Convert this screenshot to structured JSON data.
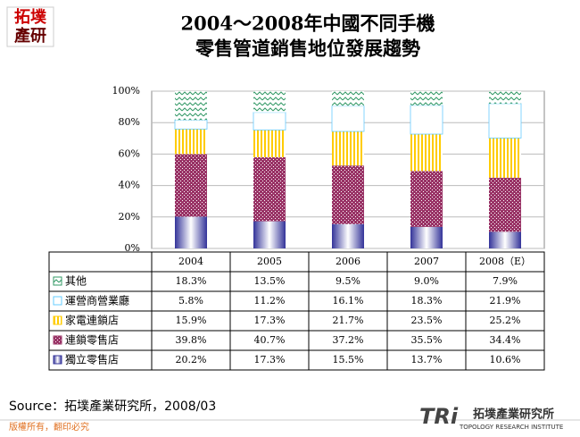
{
  "logo": [
    "拓墣",
    "產研"
  ],
  "chart_data": {
    "type": "stacked-bar",
    "title": [
      "2004～2008年中國不同手機",
      "零售管道銷售地位發展趨勢"
    ],
    "categories": [
      "2004",
      "2005",
      "2006",
      "2007",
      "2008（E）"
    ],
    "series": [
      {
        "name": "其他",
        "color": "#339966",
        "values": [
          18.3,
          13.5,
          9.5,
          9.0,
          7.9
        ],
        "value_labels": [
          "18.3%",
          "13.5%",
          "9.5%",
          "9.0%",
          "7.9%"
        ]
      },
      {
        "name": "運營商營業廳",
        "color": "#66ccff",
        "values": [
          5.8,
          11.2,
          16.1,
          18.3,
          21.9
        ],
        "value_labels": [
          "5.8%",
          "11.2%",
          "16.1%",
          "18.3%",
          "21.9%"
        ]
      },
      {
        "name": "家電連鎖店",
        "color": "#ffcc00",
        "values": [
          15.9,
          17.3,
          21.7,
          23.5,
          25.2
        ],
        "value_labels": [
          "15.9%",
          "17.3%",
          "21.7%",
          "23.5%",
          "25.2%"
        ]
      },
      {
        "name": "連鎖零售店",
        "color": "#993366",
        "values": [
          39.8,
          40.7,
          37.2,
          35.5,
          34.4
        ],
        "value_labels": [
          "39.8%",
          "40.7%",
          "37.2%",
          "35.5%",
          "34.4%"
        ]
      },
      {
        "name": "獨立零售店",
        "color": "#333399",
        "values": [
          20.2,
          17.3,
          15.5,
          13.7,
          10.6
        ],
        "value_labels": [
          "20.2%",
          "17.3%",
          "15.5%",
          "13.7%",
          "10.6%"
        ]
      }
    ],
    "ylim": [
      0,
      100
    ],
    "yticks": [
      {
        "value": 0,
        "label": "0%"
      },
      {
        "value": 20,
        "label": "20%"
      },
      {
        "value": 40,
        "label": "40%"
      },
      {
        "value": 60,
        "label": "60%"
      },
      {
        "value": 80,
        "label": "80%"
      },
      {
        "value": 100,
        "label": "100%"
      }
    ],
    "grid": true,
    "source": "Source：拓墣產業研究所，2008/03"
  },
  "footer": {
    "copyright": "版權所有，翻印必究",
    "brand": "TRi",
    "brand_name": "拓墣產業研究所",
    "brand_sub": "TOPOLOGY RESEARCH INSTITUTE"
  }
}
